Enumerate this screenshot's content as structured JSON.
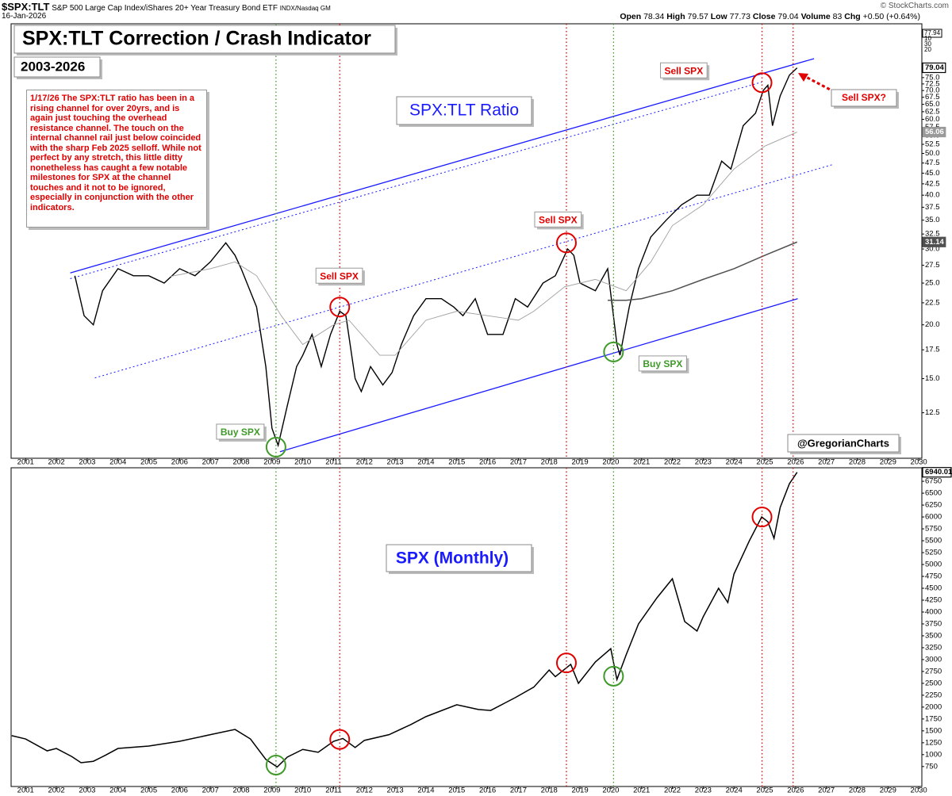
{
  "header": {
    "symbol": "$SPX:TLT",
    "description": "S&P 500 Large Cap Index/iShares 20+ Year Treasury Bond ETF",
    "exchange": "INDX/Nasdaq GM",
    "source": "© StockCharts.com",
    "date": "16-Jan-2026",
    "open_label": "Open",
    "open": "78.34",
    "high_label": "High",
    "high": "79.57",
    "low_label": "Low",
    "low": "77.73",
    "close_label": "Close",
    "close": "79.04",
    "volume_label": "Volume",
    "volume": "83",
    "chg_label": "Chg",
    "chg": "+0.50 (+0.64%)",
    "volume_scale": [
      "77.94",
      "10",
      "30",
      "20"
    ]
  },
  "boxes": {
    "title": "SPX:TLT Correction / Crash Indicator",
    "years": "2003-2026",
    "note": "1/17/26 The SPX:TLT ratio has been in a rising channel for over 20yrs, and is again just touching the overhead resistance channel. The touch on the internal channel rail just below coincided with the sharp Feb 2025 selloff. While not perfect by any stretch, this little ditty nonetheless has caught a few notable milestones for SPX at the channel touches and it not to be ignored, especially in conjunction with the other indicators.",
    "ratio_label": "SPX:TLT Ratio",
    "spx_label": "SPX (Monthly)",
    "handle": "@GregorianCharts",
    "sell_question": "Sell SPX?"
  },
  "chart_data": [
    {
      "type": "line",
      "log_scale": true,
      "xlim": [
        2000.53,
        2030.1
      ],
      "ylim": [
        9.8,
        100
      ],
      "xticks": [
        2001,
        2002,
        2003,
        2004,
        2005,
        2006,
        2007,
        2008,
        2009,
        2010,
        2011,
        2012,
        2013,
        2014,
        2015,
        2016,
        2017,
        2018,
        2019,
        2020,
        2021,
        2022,
        2023,
        2024,
        2025,
        2026,
        2027,
        2028,
        2029,
        2030
      ],
      "yticks": [
        12.5,
        {
          "value": 15,
          "label": "15.0"
        },
        17.5,
        {
          "value": 20,
          "label": "20.0"
        },
        22.5,
        {
          "value": 25,
          "label": "25.0"
        },
        27.5,
        {
          "value": 30,
          "label": "30.0"
        },
        32.5,
        {
          "value": 35,
          "label": "35.0"
        },
        37.5,
        {
          "value": 40,
          "label": "40.0"
        },
        42.5,
        {
          "value": 45,
          "label": "45.0"
        },
        47.5,
        {
          "value": 50,
          "label": "50.0"
        },
        52.5,
        {
          "value": 55,
          "label": "55.0"
        },
        57.5,
        {
          "value": 60,
          "label": "60.0"
        },
        62.5,
        {
          "value": 65,
          "label": "65.0"
        },
        67.5,
        {
          "value": 70,
          "label": "70.0"
        },
        72.5,
        {
          "value": 75,
          "label": "75.0"
        }
      ],
      "series": [
        {
          "color": "#000000",
          "x": [
            2002.6,
            2002.9,
            2003.2,
            2003.5,
            2004.0,
            2004.5,
            2005.0,
            2005.5,
            2006.0,
            2006.5,
            2007.0,
            2007.5,
            2007.8,
            2008.0,
            2008.5,
            2008.8,
            2009.0,
            2009.2,
            2009.5,
            2009.8,
            2010.0,
            2010.3,
            2010.6,
            2010.9,
            2011.2,
            2011.4,
            2011.7,
            2011.9,
            2012.2,
            2012.6,
            2012.9,
            2013.2,
            2013.6,
            2014.0,
            2014.5,
            2014.9,
            2015.2,
            2015.6,
            2016.0,
            2016.5,
            2016.9,
            2017.3,
            2017.8,
            2018.2,
            2018.6,
            2018.8,
            2019.0,
            2019.5,
            2019.9,
            2020.2,
            2020.3,
            2020.6,
            2020.9,
            2021.3,
            2021.8,
            2022.3,
            2022.8,
            2023.2,
            2023.6,
            2023.9,
            2024.3,
            2024.7,
            2024.95,
            2025.1,
            2025.25,
            2025.5,
            2025.8,
            2026.05
          ],
          "values": [
            26,
            21,
            20,
            24,
            27,
            26,
            26,
            25,
            27,
            26,
            28,
            31,
            29,
            27,
            22,
            16,
            11.5,
            10.5,
            13,
            16,
            17,
            19,
            16,
            19,
            21.5,
            21,
            15,
            14,
            16,
            14.5,
            15.5,
            18,
            21,
            23,
            23,
            22,
            21,
            23,
            19,
            19,
            23,
            22,
            25,
            26,
            30,
            29,
            25,
            24,
            27,
            18,
            17,
            22,
            27,
            32,
            35,
            38,
            40,
            40,
            48,
            46,
            58,
            62,
            70,
            72,
            58,
            68,
            76,
            79
          ]
        },
        {
          "color": "#a0a0a0",
          "x": [
            2005.7,
            2007.0,
            2007.8,
            2008.5,
            2009.3,
            2010.0,
            2011.0,
            2011.5,
            2012.5,
            2013.0,
            2014.0,
            2015.0,
            2016.0,
            2017.0,
            2017.5,
            2018.5,
            2019.5,
            2020.5,
            2021.3,
            2022.0,
            2023.0,
            2024.0,
            2025.0,
            2026.05
          ],
          "values": [
            25.9,
            27,
            28,
            26,
            21,
            18,
            20,
            20.5,
            17,
            17,
            20.5,
            21.5,
            21,
            20.5,
            21.5,
            24.5,
            25.5,
            24,
            28,
            34,
            38,
            46,
            52,
            56.06
          ]
        },
        {
          "color": "#505050",
          "x": [
            2019.9,
            2020.5,
            2021.0,
            2022.0,
            2023.0,
            2024.0,
            2025.0,
            2026.05
          ],
          "values": [
            22.8,
            22.8,
            23,
            24,
            25.5,
            27,
            29,
            31.14
          ]
        }
      ],
      "channels": [
        {
          "color": "#1a1aff",
          "dash": false,
          "x": [
            2002.45,
            2026.6
          ],
          "y": [
            26.4,
            83
          ]
        },
        {
          "color": "#1a1aff",
          "dash": false,
          "x": [
            2009.26,
            2026.07
          ],
          "y": [
            10.15,
            23.0
          ]
        },
        {
          "color": "#1a1aff",
          "dash": true,
          "x": [
            2003.25,
            2027.2
          ],
          "y": [
            15.06,
            47.1
          ]
        },
        {
          "color": "#1a1aff",
          "dash": true,
          "x": [
            2002.45,
            2024.9
          ],
          "y": [
            25.6,
            73.2
          ]
        }
      ],
      "signals": [
        {
          "x": 2009.13,
          "y": 10.4,
          "color": "#3f9a2a",
          "text": "Buy SPX"
        },
        {
          "x": 2011.2,
          "y": 22,
          "color": "#e00000",
          "text": "Sell SPX"
        },
        {
          "x": 2018.56,
          "y": 31,
          "color": "#e00000",
          "text": "Sell SPX"
        },
        {
          "x": 2020.09,
          "y": 17.3,
          "color": "#3f9a2a",
          "text": "Buy SPX"
        },
        {
          "x": 2024.91,
          "y": 73,
          "color": "#e00000",
          "text": "Sell SPX"
        },
        {
          "x": 2025.92,
          "color": "#e00000"
        }
      ],
      "badges": [
        {
          "value": 79.04,
          "color": "#000000"
        },
        {
          "value": 56.06,
          "color": "#9a9a9a"
        },
        {
          "value": 31.14,
          "color": "#505050"
        }
      ]
    },
    {
      "type": "line",
      "log_scale": false,
      "xlim": [
        2000.53,
        2030.1
      ],
      "ylim": [
        330,
        7035
      ],
      "xticks": [
        2001,
        2002,
        2003,
        2004,
        2005,
        2006,
        2007,
        2008,
        2009,
        2010,
        2011,
        2012,
        2013,
        2014,
        2015,
        2016,
        2017,
        2018,
        2019,
        2020,
        2021,
        2022,
        2023,
        2024,
        2025,
        2026,
        2027,
        2028,
        2029,
        2030
      ],
      "yticks": [
        750,
        1000,
        1250,
        1500,
        1750,
        2000,
        2250,
        2500,
        2750,
        3000,
        3250,
        3500,
        3750,
        4000,
        4250,
        4500,
        4750,
        5000,
        5250,
        5500,
        5750,
        6000,
        6250,
        6500,
        6750
      ],
      "series": [
        {
          "color": "#000000",
          "x": [
            2000.55,
            2001.0,
            2001.7,
            2002.0,
            2002.5,
            2002.8,
            2003.2,
            2003.6,
            2004.0,
            2005.0,
            2006.0,
            2007.0,
            2007.8,
            2008.3,
            2008.8,
            2009.17,
            2009.5,
            2010.0,
            2010.5,
            2011.0,
            2011.3,
            2011.7,
            2012.0,
            2012.8,
            2013.5,
            2014.0,
            2015.0,
            2015.7,
            2016.1,
            2016.9,
            2017.5,
            2018.0,
            2018.2,
            2018.7,
            2018.95,
            2019.5,
            2020.0,
            2020.2,
            2020.5,
            2020.9,
            2021.5,
            2022.0,
            2022.4,
            2022.8,
            2023.0,
            2023.5,
            2023.8,
            2024.0,
            2024.5,
            2024.9,
            2025.1,
            2025.3,
            2025.5,
            2025.8,
            2026.05
          ],
          "values": [
            1400,
            1330,
            1080,
            1130,
            960,
            830,
            860,
            990,
            1130,
            1180,
            1280,
            1420,
            1530,
            1330,
            900,
            740,
            950,
            1110,
            1050,
            1280,
            1340,
            1150,
            1300,
            1420,
            1630,
            1800,
            2050,
            1950,
            1930,
            2200,
            2420,
            2780,
            2640,
            2900,
            2500,
            2950,
            3230,
            2580,
            3100,
            3750,
            4300,
            4700,
            3800,
            3600,
            3900,
            4500,
            4200,
            4800,
            5500,
            6000,
            5900,
            5550,
            6200,
            6700,
            6940
          ]
        }
      ],
      "signals": [
        {
          "x": 2009.13,
          "y": 780,
          "color": "#3f9a2a"
        },
        {
          "x": 2011.2,
          "y": 1320,
          "color": "#e00000"
        },
        {
          "x": 2018.56,
          "y": 2930,
          "color": "#e00000"
        },
        {
          "x": 2020.09,
          "y": 2650,
          "color": "#3f9a2a"
        },
        {
          "x": 2024.91,
          "y": 6000,
          "color": "#e00000"
        },
        {
          "x": 2025.92,
          "color": "#e00000"
        }
      ],
      "badges": [
        {
          "value": 6940.01,
          "color": "#000000"
        }
      ]
    }
  ]
}
